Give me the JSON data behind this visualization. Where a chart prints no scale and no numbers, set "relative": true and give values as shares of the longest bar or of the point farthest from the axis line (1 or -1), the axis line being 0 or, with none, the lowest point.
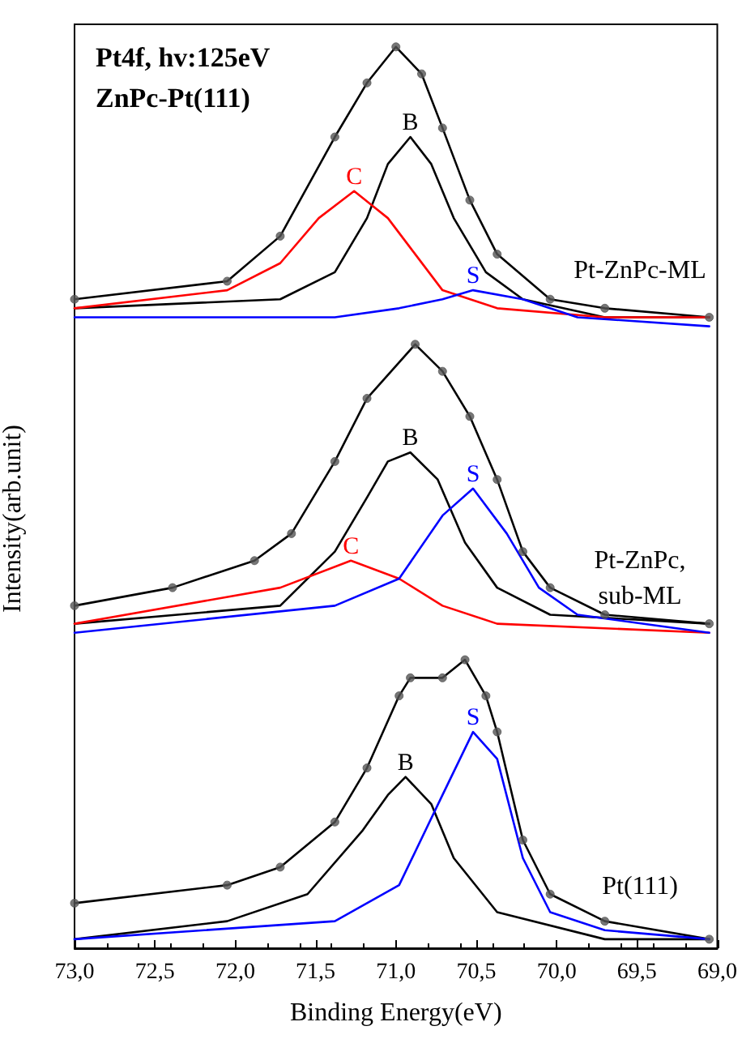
{
  "chart_data": {
    "type": "line",
    "title": "Pt4f, hv:125eV",
    "subtitle": "ZnPc-Pt(111)",
    "xlabel": "Binding Energy(eV)",
    "ylabel": "Intensity(arb.unit)",
    "relative": true,
    "grid": false,
    "line_style": "solid",
    "marker": "none",
    "xlim": [
      73,
      69
    ],
    "xticks": [
      {
        "value": 73,
        "label": "73,0"
      },
      {
        "value": 72.5,
        "label": "72,5"
      },
      {
        "value": 72,
        "label": "72,0"
      },
      {
        "value": 71.5,
        "label": "71,5"
      },
      {
        "value": 71,
        "label": "71,0"
      },
      {
        "value": 70.5,
        "label": "70,5"
      },
      {
        "value": 70,
        "label": "70,0"
      },
      {
        "value": 69.5,
        "label": "69,5"
      },
      {
        "value": 69,
        "label": "69,0"
      }
    ],
    "series": [
      {
        "type": "scatter",
        "marker": "circle",
        "color": "#555555",
        "x": [
          73.0,
          72.05,
          71.72,
          71.38,
          71.18,
          71.0,
          70.84,
          70.71,
          70.54,
          70.37,
          70.04,
          69.7,
          69.05
        ],
        "values": [
          0.72,
          0.74,
          0.79,
          0.9,
          0.96,
          1.0,
          0.97,
          0.91,
          0.83,
          0.77,
          0.72,
          0.71,
          0.7
        ]
      },
      {
        "color": "#000000",
        "x": [
          73.0,
          72.05,
          71.72,
          71.38,
          71.18,
          71.0,
          70.84,
          70.71,
          70.54,
          70.37,
          70.04,
          69.7,
          69.05
        ],
        "values": [
          0.72,
          0.74,
          0.79,
          0.9,
          0.96,
          1.0,
          0.97,
          0.91,
          0.83,
          0.77,
          0.72,
          0.71,
          0.7
        ]
      },
      {
        "name": "B",
        "color": "#000000",
        "x": [
          73.0,
          71.72,
          71.38,
          71.18,
          71.05,
          70.91,
          70.78,
          70.64,
          70.44,
          70.21,
          69.7,
          69.05
        ],
        "values": [
          0.71,
          0.72,
          0.75,
          0.81,
          0.87,
          0.9,
          0.87,
          0.81,
          0.75,
          0.72,
          0.7,
          0.7
        ]
      },
      {
        "name": "C",
        "color": "#ff0000",
        "x": [
          73.0,
          72.05,
          71.72,
          71.48,
          71.26,
          71.05,
          70.88,
          70.71,
          70.37,
          69.7,
          69.05
        ],
        "values": [
          0.71,
          0.73,
          0.76,
          0.81,
          0.84,
          0.81,
          0.77,
          0.73,
          0.71,
          0.7,
          0.7
        ]
      },
      {
        "name": "S",
        "color": "#0000ff",
        "x": [
          73.0,
          71.38,
          70.98,
          70.71,
          70.52,
          70.21,
          69.87,
          69.05
        ],
        "values": [
          0.7,
          0.7,
          0.71,
          0.72,
          0.73,
          0.72,
          0.7,
          0.69
        ]
      },
      {
        "type": "scatter",
        "marker": "circle",
        "color": "#555555",
        "x": [
          73.0,
          72.39,
          71.88,
          71.65,
          71.38,
          71.18,
          70.88,
          70.71,
          70.54,
          70.37,
          70.21,
          70.04,
          69.7,
          69.05
        ],
        "values": [
          0.38,
          0.4,
          0.43,
          0.46,
          0.54,
          0.61,
          0.67,
          0.64,
          0.59,
          0.52,
          0.44,
          0.4,
          0.37,
          0.36
        ]
      },
      {
        "color": "#000000",
        "x": [
          73.0,
          72.39,
          71.88,
          71.65,
          71.38,
          71.18,
          70.88,
          70.71,
          70.54,
          70.37,
          70.21,
          70.04,
          69.7,
          69.05
        ],
        "values": [
          0.38,
          0.4,
          0.43,
          0.46,
          0.54,
          0.61,
          0.67,
          0.64,
          0.59,
          0.52,
          0.44,
          0.4,
          0.37,
          0.36
        ]
      },
      {
        "name": "B",
        "color": "#000000",
        "x": [
          73.0,
          71.72,
          71.38,
          71.18,
          71.05,
          70.91,
          70.74,
          70.57,
          70.37,
          70.04,
          69.05
        ],
        "values": [
          0.36,
          0.38,
          0.44,
          0.5,
          0.54,
          0.55,
          0.52,
          0.45,
          0.4,
          0.37,
          0.36
        ]
      },
      {
        "name": "C",
        "color": "#ff0000",
        "x": [
          73.0,
          71.72,
          71.28,
          70.98,
          70.71,
          70.37,
          69.05
        ],
        "values": [
          0.36,
          0.4,
          0.43,
          0.41,
          0.38,
          0.36,
          0.35
        ]
      },
      {
        "name": "S",
        "color": "#0000ff",
        "x": [
          73.0,
          71.38,
          70.98,
          70.71,
          70.52,
          70.31,
          70.11,
          69.87,
          69.05
        ],
        "values": [
          0.35,
          0.38,
          0.41,
          0.48,
          0.51,
          0.46,
          0.4,
          0.37,
          0.35
        ]
      },
      {
        "type": "scatter",
        "marker": "circle",
        "color": "#555555",
        "x": [
          73.0,
          72.05,
          71.72,
          71.38,
          71.18,
          70.98,
          70.91,
          70.71,
          70.57,
          70.44,
          70.37,
          70.21,
          70.04,
          69.7,
          69.05
        ],
        "values": [
          0.05,
          0.07,
          0.09,
          0.14,
          0.2,
          0.28,
          0.3,
          0.3,
          0.32,
          0.28,
          0.24,
          0.12,
          0.06,
          0.03,
          0.01
        ]
      },
      {
        "color": "#000000",
        "x": [
          73.0,
          72.05,
          71.72,
          71.38,
          71.18,
          70.98,
          70.91,
          70.71,
          70.57,
          70.44,
          70.37,
          70.21,
          70.04,
          69.7,
          69.05
        ],
        "values": [
          0.05,
          0.07,
          0.09,
          0.14,
          0.2,
          0.28,
          0.3,
          0.3,
          0.32,
          0.28,
          0.24,
          0.12,
          0.06,
          0.03,
          0.01
        ]
      },
      {
        "name": "B",
        "color": "#000000",
        "x": [
          73.0,
          72.05,
          71.55,
          71.21,
          71.05,
          70.94,
          70.78,
          70.64,
          70.37,
          69.7,
          69.05
        ],
        "values": [
          0.01,
          0.03,
          0.06,
          0.13,
          0.17,
          0.19,
          0.16,
          0.1,
          0.04,
          0.01,
          0.01
        ]
      },
      {
        "name": "S",
        "color": "#0000ff",
        "x": [
          73.0,
          71.38,
          70.98,
          70.71,
          70.52,
          70.37,
          70.21,
          70.04,
          69.7,
          69.05
        ],
        "values": [
          0.01,
          0.03,
          0.07,
          0.17,
          0.24,
          0.21,
          0.1,
          0.04,
          0.02,
          0.01
        ]
      }
    ],
    "annotations": [
      "Pt-ZnPc-ML",
      "Pt-ZnPc, sub-ML",
      "Pt(111)"
    ]
  }
}
